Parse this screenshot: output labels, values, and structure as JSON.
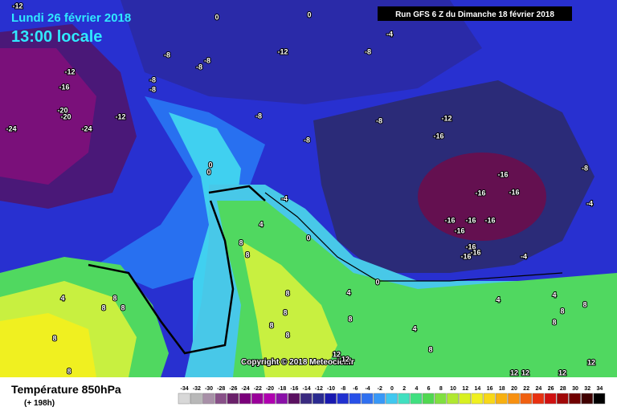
{
  "header": {
    "date": "Lundi 26 février 2018",
    "time": "13:00 locale",
    "run": "Run GFS 6 Z du Dimanche 18 février 2018"
  },
  "copyright": "Copyright © 2018 Meteociel.fr",
  "footer": {
    "title": "Température 850hPa",
    "lead": "(+ 198h)"
  },
  "scale": {
    "values": [
      -34,
      -32,
      -30,
      -28,
      -26,
      -24,
      -22,
      -20,
      -18,
      -16,
      -14,
      -12,
      -10,
      -8,
      -6,
      -4,
      -2,
      0,
      2,
      4,
      6,
      8,
      10,
      12,
      14,
      16,
      18,
      20,
      22,
      24,
      26,
      28,
      30,
      32,
      34
    ]
  },
  "map_labels": [
    -12,
    0,
    0,
    -4,
    -12,
    -8,
    -8,
    -8,
    -12,
    -8,
    -16,
    -8,
    -8,
    -20,
    -20,
    -24,
    -24,
    -12,
    -8,
    -8,
    -12,
    -16,
    -8,
    -16,
    -16,
    -16,
    -8,
    0,
    0,
    -4,
    -4,
    4,
    0,
    -16,
    -16,
    -16,
    -16,
    -16,
    -16,
    -16,
    -4,
    8,
    8,
    0,
    4,
    8,
    4,
    8,
    8,
    8,
    8,
    8,
    4,
    8,
    8,
    8,
    8,
    12,
    12,
    12,
    4,
    8,
    8,
    8,
    4,
    8,
    12,
    12,
    12
  ]
}
